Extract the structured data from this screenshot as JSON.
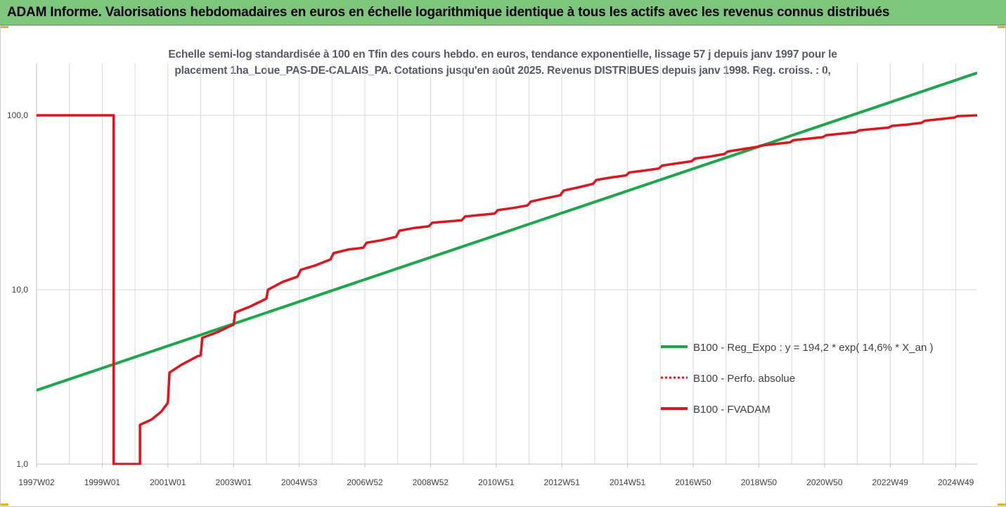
{
  "banner": {
    "title": "ADAM Informe. Valorisations hebdomadaires en euros en échelle logarithmique identique à tous les actifs avec les revenus connus distribués"
  },
  "chart_data": {
    "type": "line",
    "title": "",
    "subtitle_line1": "Echelle semi-log standardisée à 100 en Tfin des cours hebdo. en euros, tendance exponentielle, lissage 57 j depuis janv 1997 pour le",
    "subtitle_line2": "placement 1ha_Loue_PAS-DE-CALAIS_PA. Cotations jusqu'en août 2025. Revenus DISTRIBUES depuis janv 1998. Reg. croiss. : 0,",
    "y_scale": "log",
    "ylim": [
      1,
      180
    ],
    "y_ticks": [
      "100,0",
      "10,0",
      "1,0"
    ],
    "x_range": [
      1997.0,
      2025.65
    ],
    "x_tick_labels": [
      "1997W02",
      "1999W01",
      "2001W01",
      "2003W01",
      "2004W53",
      "2006W52",
      "2008W52",
      "2010W51",
      "2012W51",
      "2014W51",
      "2016W50",
      "2018W50",
      "2020W50",
      "2022W49",
      "2024W49"
    ],
    "grid": true,
    "legend_position": "right",
    "series": [
      {
        "name": "B100 - Reg_Expo : y = 194,2 * exp( 14,6% *  X_an )",
        "color": "#1aa84a",
        "style": "solid",
        "points": [
          [
            1997.0,
            2.65
          ],
          [
            2025.65,
            175
          ]
        ]
      },
      {
        "name": "B100 - Perfo. absolue",
        "color": "#e3121b",
        "style": "dotted",
        "points": []
      },
      {
        "name": "B100 - FVADAM",
        "color": "#e3121b",
        "style": "solid",
        "points": [
          [
            1997.0,
            100
          ],
          [
            1999.35,
            100
          ],
          [
            1999.35,
            1.0
          ],
          [
            2000.15,
            1.0
          ],
          [
            2000.15,
            1.68
          ],
          [
            2000.5,
            1.8
          ],
          [
            2000.8,
            2.0
          ],
          [
            2001.0,
            2.25
          ],
          [
            2001.05,
            3.35
          ],
          [
            2001.4,
            3.7
          ],
          [
            2001.9,
            4.15
          ],
          [
            2002.0,
            4.2
          ],
          [
            2002.05,
            5.3
          ],
          [
            2002.5,
            5.7
          ],
          [
            2002.9,
            6.2
          ],
          [
            2003.0,
            6.3
          ],
          [
            2003.05,
            7.4
          ],
          [
            2003.5,
            8.0
          ],
          [
            2003.9,
            8.7
          ],
          [
            2004.0,
            8.9
          ],
          [
            2004.05,
            10.0
          ],
          [
            2004.5,
            11.1
          ],
          [
            2004.95,
            11.9
          ],
          [
            2005.05,
            13.0
          ],
          [
            2005.5,
            13.8
          ],
          [
            2005.95,
            14.9
          ],
          [
            2006.05,
            16.2
          ],
          [
            2006.5,
            17.0
          ],
          [
            2006.95,
            17.4
          ],
          [
            2007.05,
            18.6
          ],
          [
            2007.5,
            19.2
          ],
          [
            2007.95,
            20.1
          ],
          [
            2008.05,
            21.8
          ],
          [
            2008.5,
            22.6
          ],
          [
            2008.95,
            23.1
          ],
          [
            2009.05,
            24.2
          ],
          [
            2009.5,
            24.6
          ],
          [
            2009.95,
            25.0
          ],
          [
            2010.05,
            26.3
          ],
          [
            2010.5,
            26.8
          ],
          [
            2010.95,
            27.3
          ],
          [
            2011.05,
            28.6
          ],
          [
            2011.5,
            29.4
          ],
          [
            2011.95,
            30.4
          ],
          [
            2012.05,
            32.0
          ],
          [
            2012.5,
            33.4
          ],
          [
            2012.95,
            34.8
          ],
          [
            2013.05,
            37.0
          ],
          [
            2013.5,
            38.6
          ],
          [
            2013.95,
            40.5
          ],
          [
            2014.05,
            42.6
          ],
          [
            2014.5,
            44.0
          ],
          [
            2014.95,
            45.2
          ],
          [
            2015.05,
            47.0
          ],
          [
            2015.5,
            48.2
          ],
          [
            2015.95,
            49.5
          ],
          [
            2016.05,
            51.5
          ],
          [
            2016.5,
            53.0
          ],
          [
            2016.95,
            54.5
          ],
          [
            2017.05,
            56.5
          ],
          [
            2017.5,
            58.0
          ],
          [
            2017.95,
            60.0
          ],
          [
            2018.05,
            62.0
          ],
          [
            2018.5,
            64.0
          ],
          [
            2018.95,
            66.0
          ],
          [
            2019.05,
            67.0
          ],
          [
            2019.5,
            68.5
          ],
          [
            2019.95,
            70.0
          ],
          [
            2020.05,
            72.0
          ],
          [
            2020.5,
            73.5
          ],
          [
            2020.95,
            75.0
          ],
          [
            2021.05,
            77.0
          ],
          [
            2021.5,
            78.5
          ],
          [
            2021.95,
            80.0
          ],
          [
            2022.05,
            82.0
          ],
          [
            2022.5,
            83.5
          ],
          [
            2022.95,
            85.0
          ],
          [
            2023.05,
            87.0
          ],
          [
            2023.5,
            88.5
          ],
          [
            2023.95,
            90.5
          ],
          [
            2024.05,
            93.0
          ],
          [
            2024.5,
            95.0
          ],
          [
            2024.95,
            97.0
          ],
          [
            2025.05,
            99.0
          ],
          [
            2025.65,
            100
          ]
        ]
      }
    ]
  },
  "colors": {
    "banner_bg": "#7dc77d",
    "grid": "#d9d9d9",
    "axis": "#bfbfbf",
    "accent_corners": "#f0b400"
  }
}
